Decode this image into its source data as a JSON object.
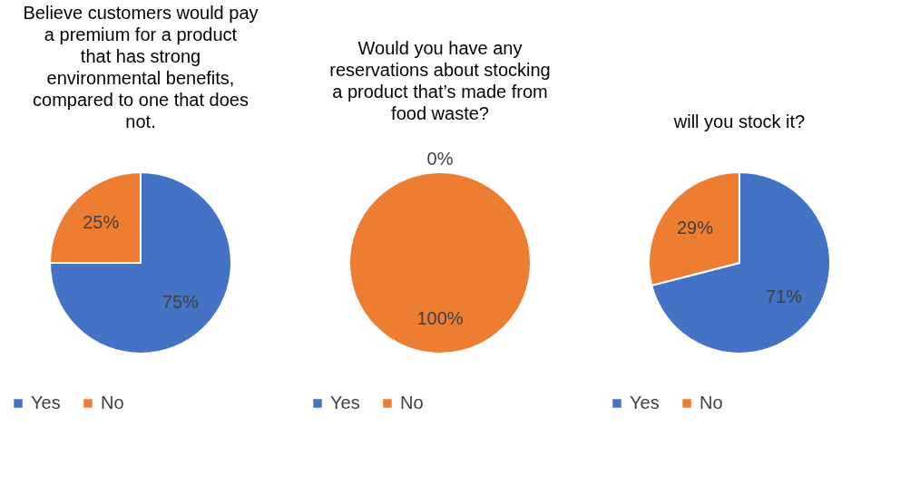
{
  "chart_data": [
    {
      "type": "pie",
      "title": "Believe customers would pay a premium for a product that has strong environmental benefits, compared to one that does not.",
      "categories": [
        "Yes",
        "No"
      ],
      "values": [
        75,
        25
      ],
      "colors": [
        "#4472c4",
        "#ed7d31"
      ],
      "value_labels": [
        "75%",
        "25%"
      ],
      "legend": "bottom"
    },
    {
      "type": "pie",
      "title": "Would you have any reservations about stocking a product that’s made from food waste?",
      "categories": [
        "Yes",
        "No"
      ],
      "values": [
        0,
        100
      ],
      "colors": [
        "#4472c4",
        "#ed7d31"
      ],
      "value_labels": [
        "0%",
        "100%"
      ],
      "legend": "bottom"
    },
    {
      "type": "pie",
      "title": "will you stock it?",
      "categories": [
        "Yes",
        "No"
      ],
      "values": [
        71,
        29
      ],
      "colors": [
        "#4472c4",
        "#ed7d31"
      ],
      "value_labels": [
        "71%",
        "29%"
      ],
      "legend": "bottom"
    }
  ]
}
